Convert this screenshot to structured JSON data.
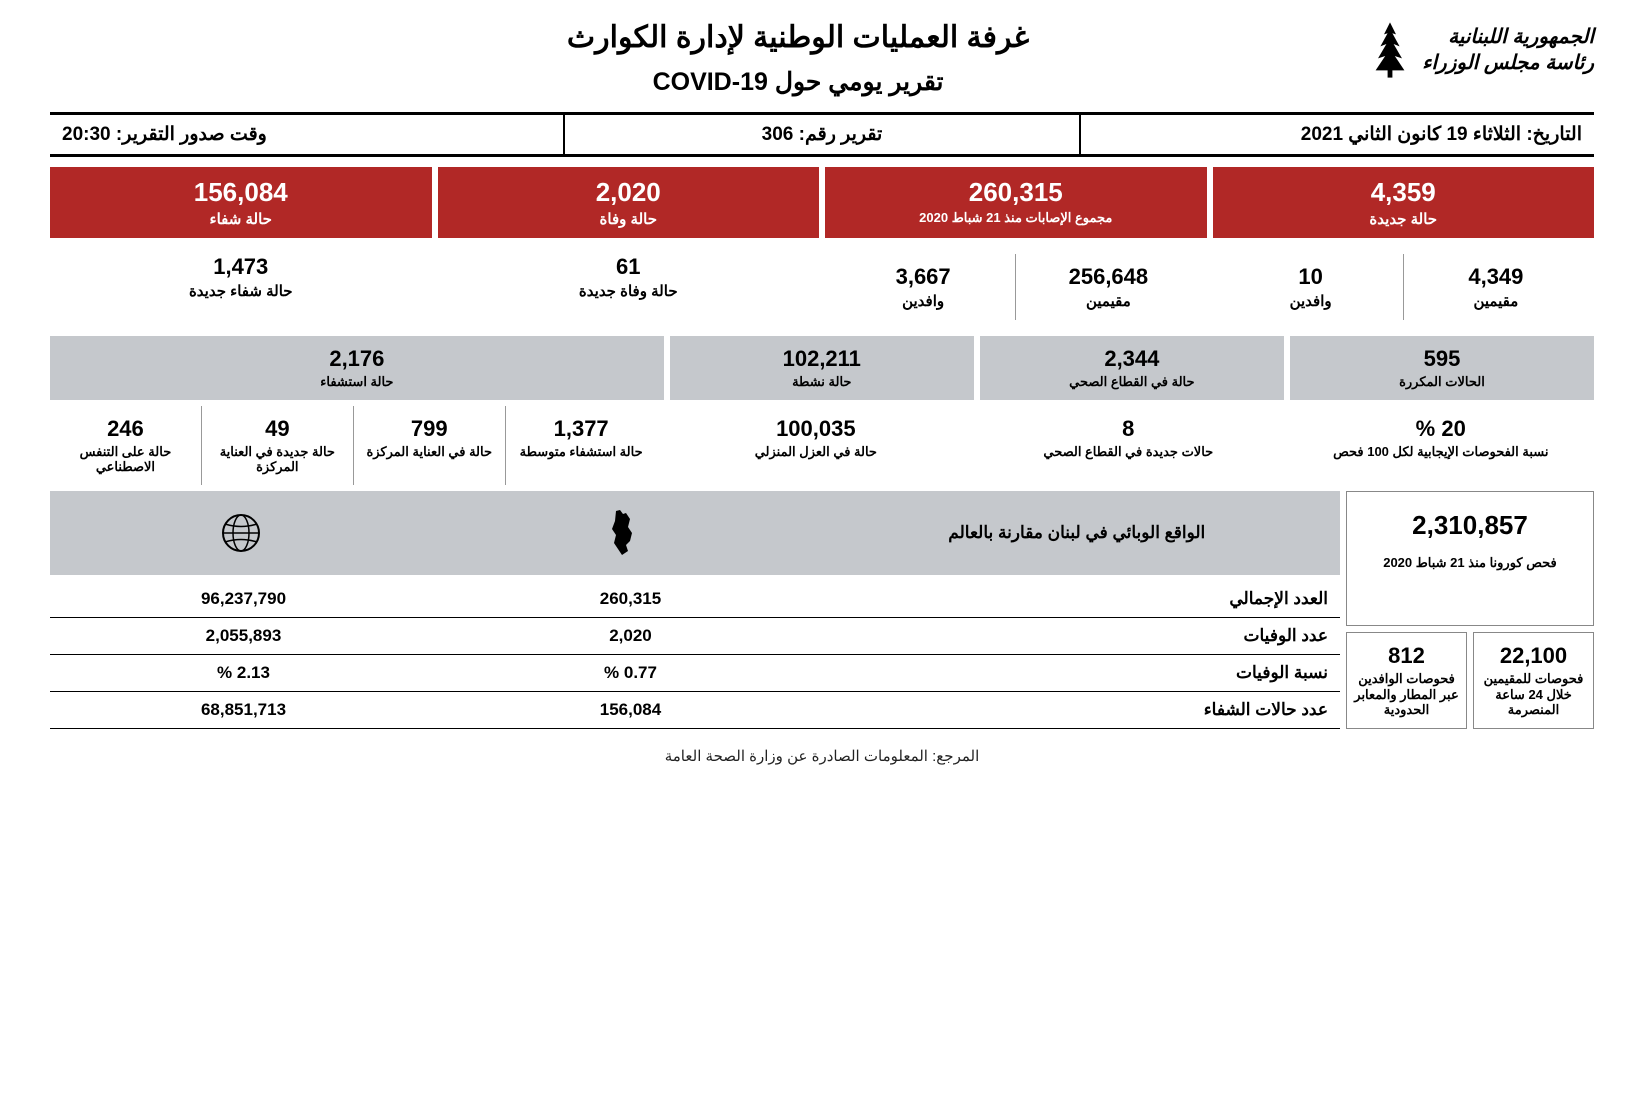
{
  "logo": {
    "line1": "الجمهورية اللبنانية",
    "line2": "رئاسة مجلس الوزراء"
  },
  "titles": {
    "main": "غرفة العمليات الوطنية لإدارة الكوارث",
    "sub": "تقرير يومي حول COVID-19"
  },
  "info": {
    "date_label": "التاريخ:",
    "date_value": "الثلاثاء 19 كانون الثاني 2021",
    "report_label": "تقرير رقم:",
    "report_value": "306",
    "time_label": "وقت صدور التقرير:",
    "time_value": "20:30"
  },
  "colors": {
    "red": "#b12826",
    "gray": "#c5c8cc",
    "white": "#ffffff",
    "text_dark": "#000000"
  },
  "row1": [
    {
      "value": "4,359",
      "label": "حالة جديدة"
    },
    {
      "value": "260,315",
      "label": "مجموع الإصابات منذ 21 شباط 2020"
    },
    {
      "value": "2,020",
      "label": "حالة وفاة"
    },
    {
      "value": "156,084",
      "label": "حالة شفاء"
    }
  ],
  "row2": {
    "new": {
      "a_val": "4,349",
      "a_lbl": "مقيمين",
      "b_val": "10",
      "b_lbl": "وافدين"
    },
    "total": {
      "a_val": "256,648",
      "a_lbl": "مقيمين",
      "b_val": "3,667",
      "b_lbl": "وافدين"
    },
    "deaths": {
      "val": "61",
      "lbl": "حالة وفاة جديدة"
    },
    "recovered": {
      "val": "1,473",
      "lbl": "حالة شفاء جديدة"
    }
  },
  "row3": [
    {
      "value": "595",
      "label": "الحالات المكررة"
    },
    {
      "value": "2,344",
      "label": "حالة في القطاع الصحي"
    },
    {
      "value": "102,211",
      "label": "حالة نشطة"
    },
    {
      "value": "2,176",
      "label": "حالة استشفاء",
      "wide": true
    }
  ],
  "row4": {
    "a": {
      "value": "20 %",
      "label": "نسبة الفحوصات الإيجابية لكل 100 فحص"
    },
    "b": {
      "value": "8",
      "label": "حالات جديدة في القطاع الصحي"
    },
    "c": {
      "value": "100,035",
      "label": "حالة في العزل المنزلي"
    },
    "d": [
      {
        "value": "1,377",
        "label": "حالة استشفاء متوسطة"
      },
      {
        "value": "799",
        "label": "حالة في العناية المركزة"
      },
      {
        "value": "49",
        "label": "حالة جديدة في العناية المركزة"
      },
      {
        "value": "246",
        "label": "حالة على التنفس الاصطناعي"
      }
    ]
  },
  "tests": {
    "total": {
      "value": "2,310,857",
      "label": "فحص كورونا منذ 21 شباط 2020"
    },
    "a": {
      "value": "22,100",
      "label": "فحوصات للمقيمين خلال 24 ساعة المنصرمة"
    },
    "b": {
      "value": "812",
      "label": "فحوصات الوافدين عبر المطار والمعابر الحدودية"
    }
  },
  "comparison": {
    "title": "الواقع الوبائي في لبنان مقارنة بالعالم",
    "lebanon_icon": "lebanon",
    "world_icon": "globe",
    "rows": [
      {
        "label": "العدد الإجمالي",
        "leb": "260,315",
        "world": "96,237,790"
      },
      {
        "label": "عدد الوفيات",
        "leb": "2,020",
        "world": "2,055,893"
      },
      {
        "label": "نسبة الوفيات",
        "leb": "0.77 %",
        "world": "2.13 %"
      },
      {
        "label": "عدد حالات الشفاء",
        "leb": "156,084",
        "world": "68,851,713"
      }
    ]
  },
  "footer": "المرجع: المعلومات الصادرة عن وزارة الصحة العامة"
}
